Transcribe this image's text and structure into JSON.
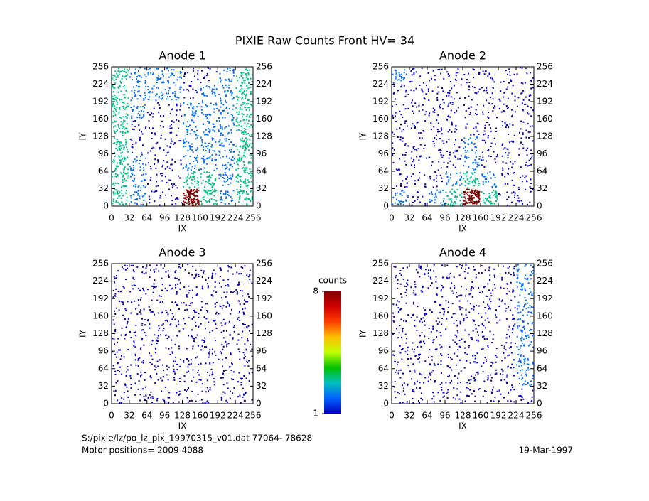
{
  "title": "PIXIE Raw Counts Front HV= 34",
  "chart_data": [
    {
      "type": "heatmap",
      "title": "Anode 1",
      "xlabel": "IX",
      "ylabel": "IY",
      "xlim": [
        0,
        256
      ],
      "ylim": [
        0,
        256
      ],
      "xticks": [
        0,
        32,
        64,
        96,
        128,
        160,
        192,
        224,
        256
      ],
      "yticks": [
        0,
        32,
        64,
        96,
        128,
        160,
        192,
        224,
        256
      ],
      "z": [
        [
          3,
          2,
          2,
          2,
          1,
          1,
          2,
          3
        ],
        [
          3,
          2,
          2,
          2,
          1,
          2,
          2,
          3
        ],
        [
          3,
          2,
          1,
          1,
          2,
          2,
          2,
          3
        ],
        [
          3,
          1,
          1,
          1,
          2,
          2,
          2,
          3
        ],
        [
          3,
          1,
          1,
          1,
          2,
          2,
          2,
          3
        ],
        [
          3,
          2,
          1,
          1,
          2,
          2,
          2,
          3
        ],
        [
          3,
          2,
          1,
          1,
          3,
          3,
          2,
          3
        ],
        [
          3,
          2,
          1,
          1,
          8,
          3,
          2,
          3
        ]
      ]
    },
    {
      "type": "heatmap",
      "title": "Anode 2",
      "xlabel": "IX",
      "ylabel": "IY",
      "xlim": [
        0,
        256
      ],
      "ylim": [
        0,
        256
      ],
      "xticks": [
        0,
        32,
        64,
        96,
        128,
        160,
        192,
        224,
        256
      ],
      "yticks": [
        0,
        32,
        64,
        96,
        128,
        160,
        192,
        224,
        256
      ],
      "z": [
        [
          2,
          1,
          1,
          1,
          1,
          1,
          1,
          1
        ],
        [
          1,
          1,
          1,
          1,
          1,
          1,
          1,
          1
        ],
        [
          1,
          1,
          1,
          1,
          1,
          1,
          1,
          1
        ],
        [
          1,
          1,
          1,
          1,
          1,
          1,
          1,
          1
        ],
        [
          1,
          1,
          1,
          1,
          2,
          1,
          1,
          1
        ],
        [
          1,
          1,
          1,
          1,
          2,
          1,
          1,
          1
        ],
        [
          1,
          1,
          1,
          2,
          3,
          2,
          1,
          1
        ],
        [
          2,
          1,
          2,
          3,
          8,
          3,
          1,
          1
        ]
      ]
    },
    {
      "type": "heatmap",
      "title": "Anode 3",
      "xlabel": "IX",
      "ylabel": "IY",
      "xlim": [
        0,
        256
      ],
      "ylim": [
        0,
        256
      ],
      "xticks": [
        0,
        32,
        64,
        96,
        128,
        160,
        192,
        224,
        256
      ],
      "yticks": [
        0,
        32,
        64,
        96,
        128,
        160,
        192,
        224,
        256
      ],
      "z": [
        [
          1,
          1,
          1,
          1,
          1,
          1,
          1,
          1
        ],
        [
          1,
          1,
          1,
          1,
          1,
          1,
          1,
          1
        ],
        [
          1,
          1,
          1,
          1,
          1,
          1,
          1,
          1
        ],
        [
          1,
          1,
          1,
          1,
          1,
          1,
          1,
          1
        ],
        [
          1,
          1,
          1,
          1,
          1,
          1,
          1,
          1
        ],
        [
          1,
          1,
          1,
          1,
          1,
          1,
          1,
          1
        ],
        [
          1,
          1,
          1,
          1,
          1,
          1,
          1,
          1
        ],
        [
          1,
          1,
          1,
          1,
          1,
          1,
          1,
          1
        ]
      ]
    },
    {
      "type": "heatmap",
      "title": "Anode 4",
      "xlabel": "IX",
      "ylabel": "IY",
      "xlim": [
        0,
        256
      ],
      "ylim": [
        0,
        256
      ],
      "xticks": [
        0,
        32,
        64,
        96,
        128,
        160,
        192,
        224,
        256
      ],
      "yticks": [
        0,
        32,
        64,
        96,
        128,
        160,
        192,
        224,
        256
      ],
      "z": [
        [
          1,
          1,
          1,
          1,
          1,
          1,
          1,
          2
        ],
        [
          1,
          1,
          1,
          1,
          1,
          1,
          1,
          2
        ],
        [
          1,
          1,
          1,
          1,
          1,
          1,
          1,
          2
        ],
        [
          1,
          1,
          1,
          1,
          1,
          1,
          1,
          2
        ],
        [
          1,
          1,
          1,
          1,
          1,
          1,
          1,
          2
        ],
        [
          1,
          1,
          1,
          1,
          1,
          1,
          1,
          2
        ],
        [
          1,
          1,
          1,
          1,
          1,
          1,
          1,
          2
        ],
        [
          1,
          1,
          1,
          1,
          1,
          1,
          1,
          1
        ]
      ]
    }
  ],
  "colorbar": {
    "label": "counts",
    "lim": [
      1,
      8
    ],
    "ticks": [
      1,
      8
    ],
    "colors": [
      "#0000c0",
      "#0060ff",
      "#00c0c0",
      "#00c000",
      "#c0ff00",
      "#ffc000",
      "#ff4000",
      "#d00000",
      "#800000"
    ]
  },
  "footer": {
    "file": "S:/pixie/lz/po_lz_pix_19970315_v01.dat   77064- 78628",
    "motor": "Motor positions= 2009 4088",
    "date": "19-Mar-1997"
  }
}
